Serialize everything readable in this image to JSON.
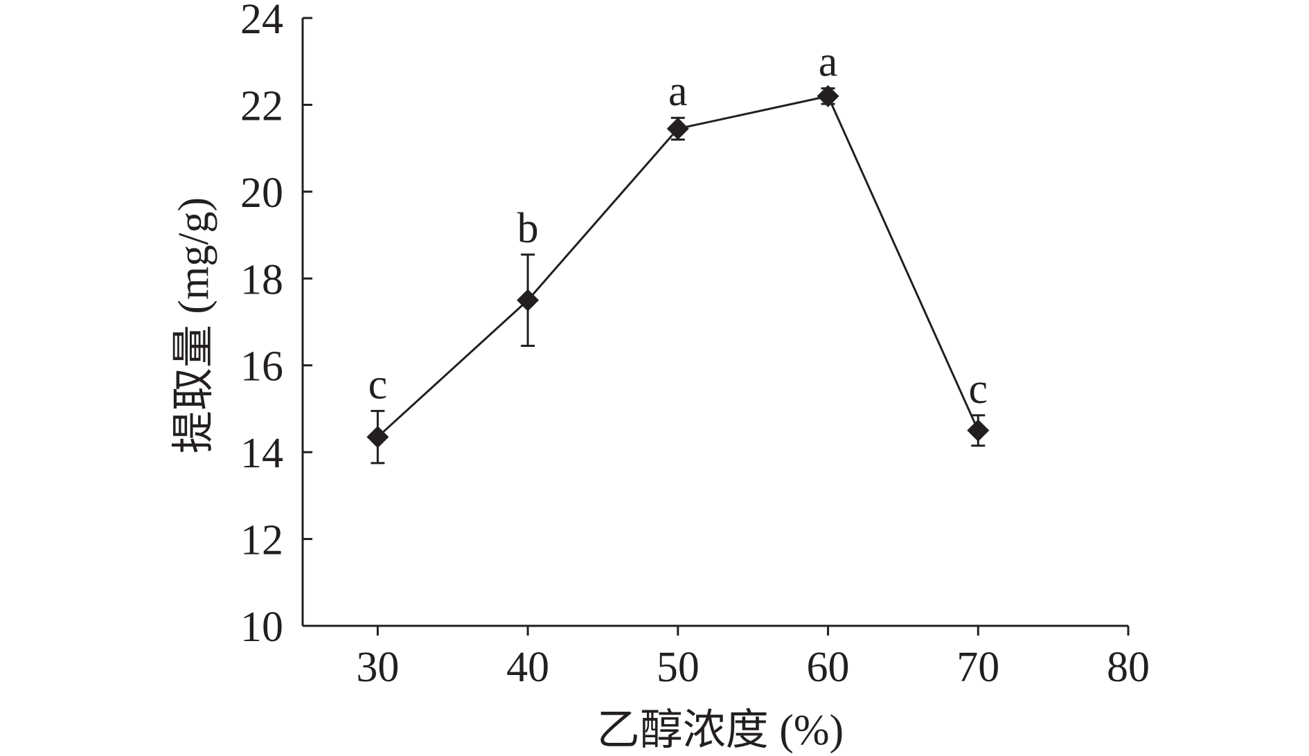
{
  "chart_data": {
    "type": "line",
    "title": "",
    "xlabel": "乙醇浓度 (%)",
    "ylabel": "提取量 (mg/g)",
    "x": [
      30,
      40,
      50,
      60,
      70
    ],
    "xlim": [
      25,
      80
    ],
    "xticks": [
      30,
      40,
      50,
      60,
      70,
      80
    ],
    "ylim": [
      10,
      24
    ],
    "yticks": [
      10,
      12,
      14,
      16,
      18,
      20,
      22,
      24
    ],
    "grid": false,
    "legend": "none",
    "series": [
      {
        "values": [
          14.35,
          17.5,
          21.45,
          22.2,
          14.5
        ],
        "error": [
          0.6,
          1.05,
          0.25,
          0.18,
          0.35
        ],
        "labels": [
          "c",
          "b",
          "a",
          "a",
          "c"
        ],
        "marker": "diamond",
        "color": "#231f20"
      }
    ]
  }
}
